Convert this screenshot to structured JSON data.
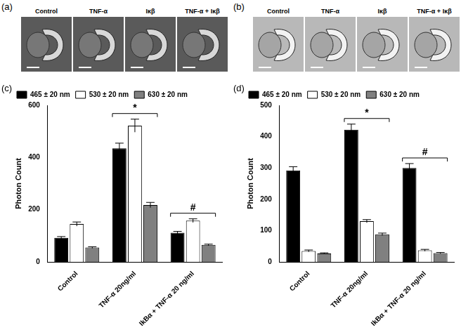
{
  "image_panels": [
    {
      "panel": "(a)",
      "labels": [
        "Control",
        "TNF-α",
        "Iκβ",
        "TNF-α + Iκβ"
      ]
    },
    {
      "panel": "(b)",
      "labels": [
        "Control",
        "TNF-α",
        "Iκβ",
        "TNF-α + Iκβ"
      ]
    }
  ],
  "chart_data": [
    {
      "type": "bar",
      "panel": "(c)",
      "y_label": "Photon Count",
      "categories": [
        "Control",
        "TNF-α 20ng/ml",
        "IkBα + TNF-α 20 ng/ml"
      ],
      "series": [
        {
          "name": "465 ± 20 nm",
          "color": "#000000",
          "values": [
            92,
            435,
            112
          ],
          "errors": [
            5,
            20,
            5
          ]
        },
        {
          "name": "530 ± 20 nm",
          "color": "#ffffff",
          "values": [
            145,
            522,
            158
          ],
          "errors": [
            8,
            25,
            7
          ]
        },
        {
          "name": "630 ± 20 nm",
          "color": "#808080",
          "values": [
            55,
            218,
            65
          ],
          "errors": [
            3,
            10,
            3
          ]
        }
      ],
      "ylim": [
        0,
        600
      ],
      "yticks": [
        0,
        200,
        400,
        600
      ],
      "grid": false,
      "legend": "top-left",
      "annotations": [
        {
          "category": "TNF-α 20ng/ml",
          "text": "*"
        },
        {
          "category": "IkBα + TNF-α 20 ng/ml",
          "text": "#"
        }
      ]
    },
    {
      "type": "bar",
      "panel": "(d)",
      "y_label": "Photon Count",
      "categories": [
        "Control",
        "TNF-α 20ng/ml",
        "IkBα + TNF-α 20 ng/ml"
      ],
      "series": [
        {
          "name": "465 ± 20 nm",
          "color": "#000000",
          "values": [
            292,
            422,
            300
          ],
          "errors": [
            12,
            18,
            14
          ]
        },
        {
          "name": "530 ± 20 nm",
          "color": "#ffffff",
          "values": [
            35,
            130,
            37
          ],
          "errors": [
            3,
            5,
            3
          ]
        },
        {
          "name": "630 ± 20 nm",
          "color": "#808080",
          "values": [
            27,
            88,
            28
          ],
          "errors": [
            2,
            4,
            2
          ]
        }
      ],
      "ylim": [
        0,
        500
      ],
      "yticks": [
        0,
        100,
        200,
        300,
        400,
        500
      ],
      "grid": false,
      "legend": "top-left",
      "annotations": [
        {
          "category": "TNF-α 20ng/ml",
          "text": "*"
        },
        {
          "category": "IkBα + TNF-α 20 ng/ml",
          "text": "#"
        }
      ]
    }
  ]
}
